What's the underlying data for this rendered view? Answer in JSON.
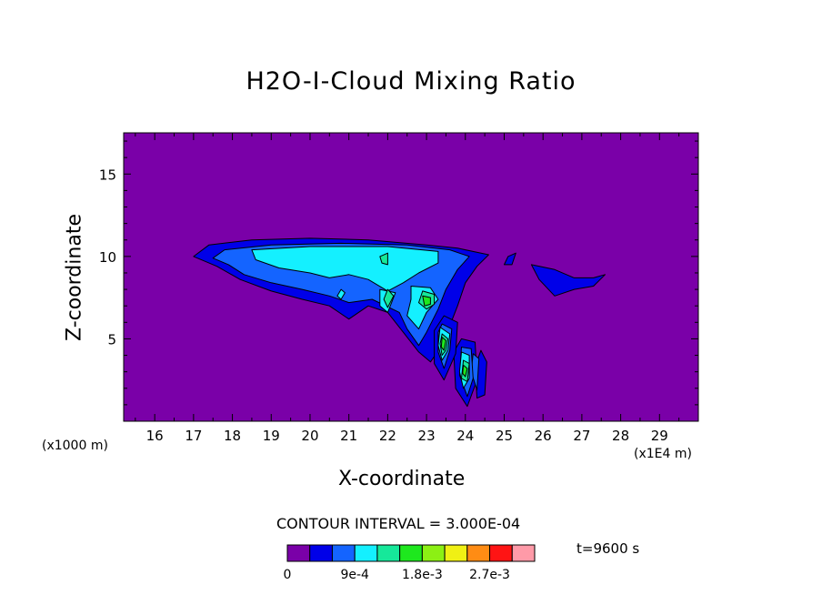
{
  "chart_data": {
    "type": "contour",
    "title": "H2O-I-Cloud Mixing Ratio",
    "xlabel": "X-coordinate",
    "ylabel": "Z-coordinate",
    "x_unit_label": "(x1E4 m)",
    "y_unit_label": "(x1000 m)",
    "xlim": [
      15.2,
      30.0
    ],
    "ylim": [
      0.0,
      17.5
    ],
    "x_ticks": [
      16,
      17,
      18,
      19,
      20,
      21,
      22,
      23,
      24,
      25,
      26,
      27,
      28,
      29
    ],
    "y_ticks": [
      5,
      10,
      15
    ],
    "contour_interval_label": "CONTOUR INTERVAL = 3.000E-04",
    "time_label": "t=9600 s",
    "colorbar_labels": [
      "0",
      "9e-4",
      "1.8e-3",
      "2.7e-3"
    ],
    "colorbar_label_levels": [
      0,
      3,
      6,
      9
    ],
    "levels": [
      0,
      0.0003,
      0.0006,
      0.0009,
      0.0012,
      0.0015,
      0.0018,
      0.0021,
      0.0024,
      0.0027,
      0.003
    ],
    "level_colors": [
      "#7a00a8",
      "#0000e8",
      "#1464ff",
      "#14f0ff",
      "#16e89a",
      "#1ee81e",
      "#8cf014",
      "#f0f014",
      "#ff8c14",
      "#ff1414",
      "#ff9aa8"
    ],
    "regions": [
      {
        "level": 1,
        "points": [
          [
            17.0,
            10.0
          ],
          [
            17.4,
            10.7
          ],
          [
            18.5,
            11.0
          ],
          [
            20.0,
            11.1
          ],
          [
            21.5,
            11.0
          ],
          [
            23.0,
            10.7
          ],
          [
            23.8,
            10.5
          ],
          [
            24.6,
            10.1
          ],
          [
            24.3,
            9.4
          ],
          [
            24.0,
            8.4
          ],
          [
            23.8,
            7.0
          ],
          [
            23.6,
            5.8
          ],
          [
            23.4,
            4.6
          ],
          [
            23.1,
            3.6
          ],
          [
            22.8,
            4.2
          ],
          [
            22.4,
            5.4
          ],
          [
            22.0,
            6.6
          ],
          [
            21.5,
            7.0
          ],
          [
            21.0,
            6.2
          ],
          [
            20.5,
            7.0
          ],
          [
            19.8,
            7.4
          ],
          [
            19.0,
            7.9
          ],
          [
            18.2,
            8.6
          ],
          [
            17.6,
            9.4
          ]
        ]
      },
      {
        "level": 1,
        "points": [
          [
            25.7,
            9.5
          ],
          [
            26.3,
            9.2
          ],
          [
            26.8,
            8.7
          ],
          [
            27.3,
            8.7
          ],
          [
            27.6,
            8.9
          ],
          [
            27.3,
            8.2
          ],
          [
            26.8,
            8.0
          ],
          [
            26.3,
            7.6
          ],
          [
            25.9,
            8.6
          ]
        ]
      },
      {
        "level": 1,
        "points": [
          [
            25.1,
            10.0
          ],
          [
            25.3,
            10.2
          ],
          [
            25.2,
            9.5
          ],
          [
            25.0,
            9.5
          ]
        ]
      },
      {
        "level": 1,
        "points": [
          [
            24.4,
            4.3
          ],
          [
            24.55,
            3.6
          ],
          [
            24.5,
            1.6
          ],
          [
            24.3,
            1.4
          ],
          [
            24.25,
            3.3
          ]
        ]
      },
      {
        "level": 1,
        "points": [
          [
            23.9,
            5.0
          ],
          [
            24.25,
            4.8
          ],
          [
            24.3,
            2.5
          ],
          [
            24.05,
            0.9
          ],
          [
            23.75,
            2.0
          ],
          [
            23.7,
            4.2
          ]
        ]
      },
      {
        "level": 1,
        "points": [
          [
            23.45,
            6.4
          ],
          [
            23.8,
            6.0
          ],
          [
            23.75,
            4.1
          ],
          [
            23.45,
            2.5
          ],
          [
            23.2,
            3.5
          ],
          [
            23.2,
            5.5
          ]
        ]
      },
      {
        "level": 2,
        "points": [
          [
            17.5,
            9.9
          ],
          [
            17.8,
            10.4
          ],
          [
            19.0,
            10.7
          ],
          [
            20.8,
            10.8
          ],
          [
            22.5,
            10.7
          ],
          [
            23.6,
            10.4
          ],
          [
            24.1,
            10.0
          ],
          [
            23.8,
            9.2
          ],
          [
            23.5,
            8.0
          ],
          [
            23.3,
            6.8
          ],
          [
            23.0,
            5.4
          ],
          [
            22.8,
            4.6
          ],
          [
            22.5,
            5.6
          ],
          [
            22.3,
            6.6
          ],
          [
            21.6,
            7.4
          ],
          [
            21.0,
            7.2
          ],
          [
            20.5,
            7.6
          ],
          [
            19.8,
            8.0
          ],
          [
            19.0,
            8.4
          ],
          [
            18.3,
            8.9
          ],
          [
            17.9,
            9.5
          ]
        ]
      },
      {
        "level": 2,
        "points": [
          [
            24.2,
            4.1
          ],
          [
            24.35,
            3.8
          ],
          [
            24.3,
            1.9
          ],
          [
            24.15,
            3.0
          ]
        ]
      },
      {
        "level": 2,
        "points": [
          [
            23.9,
            4.5
          ],
          [
            24.15,
            4.4
          ],
          [
            24.2,
            2.6
          ],
          [
            24.05,
            1.5
          ],
          [
            23.85,
            2.8
          ]
        ]
      },
      {
        "level": 2,
        "points": [
          [
            23.4,
            5.9
          ],
          [
            23.65,
            5.6
          ],
          [
            23.6,
            4.3
          ],
          [
            23.45,
            3.2
          ],
          [
            23.3,
            4.2
          ],
          [
            23.3,
            5.4
          ]
        ]
      },
      {
        "level": 3,
        "points": [
          [
            18.5,
            10.4
          ],
          [
            20.0,
            10.6
          ],
          [
            22.0,
            10.6
          ],
          [
            23.3,
            10.3
          ],
          [
            23.3,
            9.6
          ],
          [
            22.8,
            9.0
          ],
          [
            22.4,
            8.4
          ],
          [
            22.0,
            7.9
          ],
          [
            21.5,
            8.6
          ],
          [
            21.0,
            8.9
          ],
          [
            20.5,
            8.7
          ],
          [
            20.0,
            9.0
          ],
          [
            19.2,
            9.3
          ],
          [
            18.6,
            9.8
          ]
        ]
      },
      {
        "level": 3,
        "points": [
          [
            22.6,
            8.2
          ],
          [
            23.1,
            8.1
          ],
          [
            23.3,
            7.4
          ],
          [
            23.0,
            6.6
          ],
          [
            22.8,
            5.6
          ],
          [
            22.5,
            6.4
          ],
          [
            22.6,
            7.4
          ]
        ]
      },
      {
        "level": 3,
        "points": [
          [
            21.8,
            8.0
          ],
          [
            22.2,
            7.8
          ],
          [
            22.0,
            6.6
          ],
          [
            21.8,
            7.0
          ]
        ]
      },
      {
        "level": 3,
        "points": [
          [
            23.35,
            5.7
          ],
          [
            23.6,
            5.3
          ],
          [
            23.55,
            4.3
          ],
          [
            23.4,
            3.7
          ],
          [
            23.3,
            4.6
          ]
        ]
      },
      {
        "level": 3,
        "points": [
          [
            23.9,
            4.2
          ],
          [
            24.1,
            4.0
          ],
          [
            24.1,
            2.6
          ],
          [
            23.95,
            2.0
          ],
          [
            23.85,
            3.0
          ]
        ]
      },
      {
        "level": 3,
        "points": [
          [
            20.8,
            8.0
          ],
          [
            20.9,
            7.8
          ],
          [
            20.8,
            7.4
          ],
          [
            20.7,
            7.6
          ]
        ]
      },
      {
        "level": 4,
        "points": [
          [
            22.9,
            7.9
          ],
          [
            23.2,
            7.7
          ],
          [
            23.2,
            7.1
          ],
          [
            23.0,
            6.8
          ],
          [
            22.8,
            7.2
          ]
        ]
      },
      {
        "level": 4,
        "points": [
          [
            22.0,
            8.0
          ],
          [
            22.15,
            7.6
          ],
          [
            22.0,
            6.9
          ],
          [
            21.9,
            7.4
          ]
        ]
      },
      {
        "level": 4,
        "points": [
          [
            23.4,
            5.3
          ],
          [
            23.55,
            5.0
          ],
          [
            23.5,
            4.3
          ],
          [
            23.4,
            4.0
          ],
          [
            23.35,
            4.7
          ]
        ]
      },
      {
        "level": 4,
        "points": [
          [
            23.95,
            3.7
          ],
          [
            24.1,
            3.5
          ],
          [
            24.05,
            2.4
          ],
          [
            23.9,
            2.6
          ]
        ]
      },
      {
        "level": 4,
        "points": [
          [
            21.8,
            10.0
          ],
          [
            22.0,
            10.2
          ],
          [
            22.0,
            9.5
          ],
          [
            21.85,
            9.6
          ]
        ]
      },
      {
        "level": 5,
        "points": [
          [
            22.9,
            7.6
          ],
          [
            23.1,
            7.5
          ],
          [
            23.1,
            7.1
          ],
          [
            22.95,
            7.0
          ]
        ]
      },
      {
        "level": 5,
        "points": [
          [
            23.4,
            5.1
          ],
          [
            23.5,
            4.9
          ],
          [
            23.45,
            4.3
          ],
          [
            23.38,
            4.5
          ]
        ]
      },
      {
        "level": 5,
        "points": [
          [
            23.95,
            3.4
          ],
          [
            24.05,
            3.2
          ],
          [
            24.0,
            2.7
          ],
          [
            23.93,
            2.9
          ]
        ]
      }
    ]
  }
}
